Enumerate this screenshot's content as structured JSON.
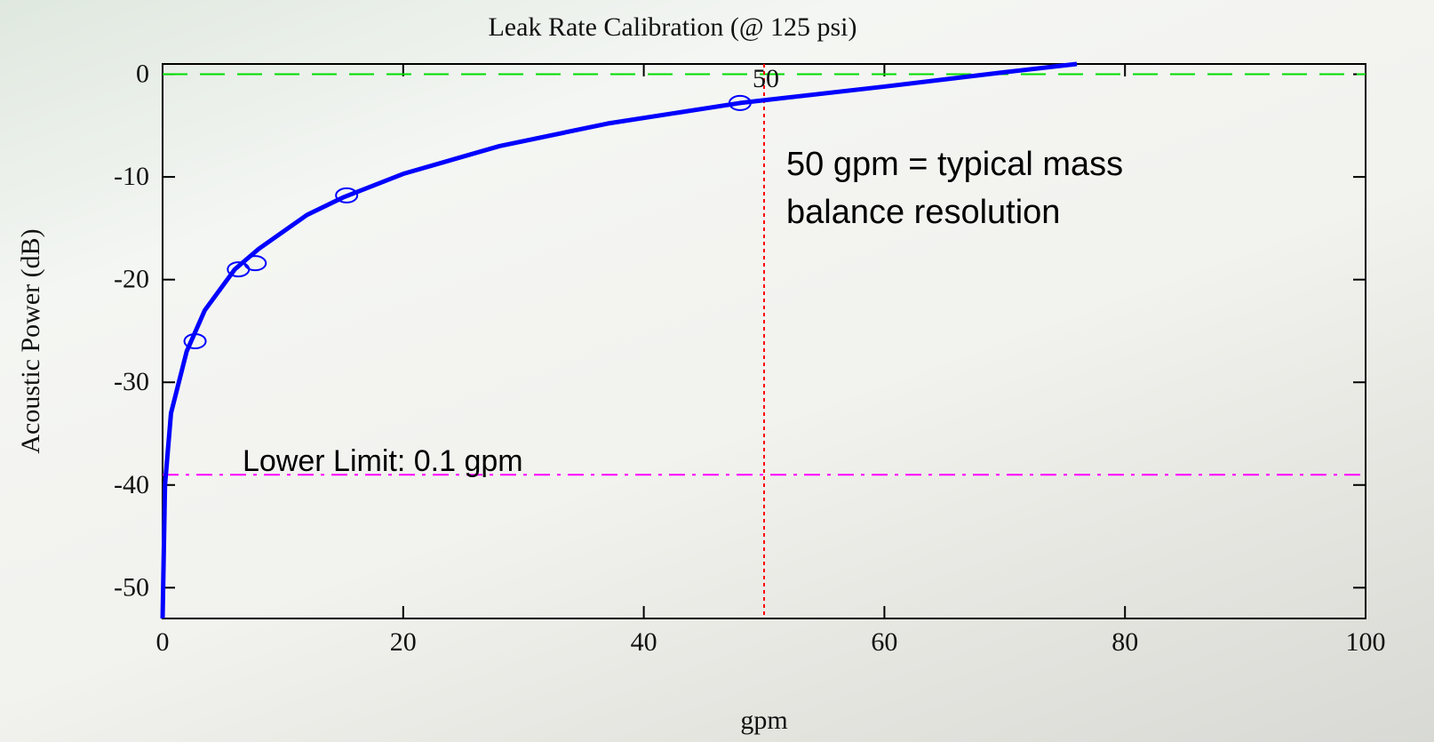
{
  "chart_data": {
    "type": "line",
    "title": "Leak Rate Calibration (@ 125 psi)",
    "xlabel": "gpm",
    "ylabel": "Acoustic Power (dB)",
    "xlim": [
      0,
      100
    ],
    "ylim": [
      -53,
      1
    ],
    "xticks": [
      0,
      20,
      40,
      60,
      80,
      100
    ],
    "yticks": [
      -50,
      -40,
      -30,
      -20,
      -10,
      0
    ],
    "series": [
      {
        "color": "#0000ff",
        "style": "solid",
        "x": [
          0,
          0.2,
          0.7,
          2,
          3.5,
          6,
          8,
          12,
          15,
          20,
          28,
          37,
          48,
          60,
          70,
          76
        ],
        "values": [
          -53,
          -40,
          -33,
          -27,
          -23,
          -19,
          -17,
          -13.7,
          -12,
          -9.7,
          -7,
          -4.8,
          -2.8,
          -1.2,
          0.2,
          1
        ]
      },
      {
        "color": "#0000ff",
        "marker": "circle",
        "x": [
          2.7,
          6.3,
          7.7,
          15.3,
          48
        ],
        "values": [
          -26,
          -19,
          -18.4,
          -11.8,
          -2.8
        ]
      }
    ],
    "hlines": [
      {
        "value": 0,
        "color": "#00dd00",
        "style": "dashed"
      },
      {
        "value": -39,
        "color": "#ff00ff",
        "style": "dashdot",
        "label": "Lower Limit: 0.1 gpm"
      }
    ],
    "vlines": [
      {
        "value": 50,
        "color": "#ff0000",
        "style": "dotted",
        "label": "50"
      }
    ],
    "annotation_lines": [
      "50 gpm = typical mass",
      "balance resolution"
    ]
  }
}
